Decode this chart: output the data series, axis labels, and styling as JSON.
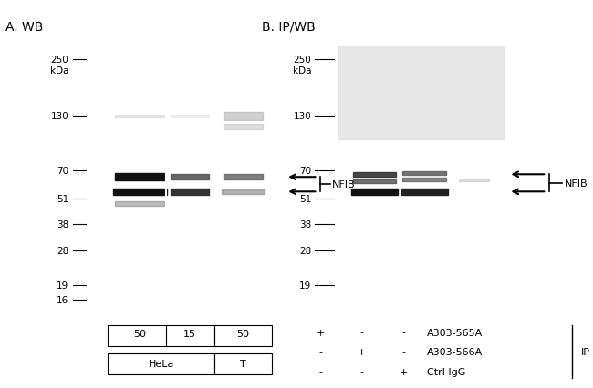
{
  "panel_A_title": "A. WB",
  "panel_B_title": "B. IP/WB",
  "kda_labels": [
    "250",
    "130",
    "70",
    "51",
    "38",
    "28",
    "19",
    "16"
  ],
  "kda_values": [
    250,
    130,
    70,
    51,
    38,
    28,
    19,
    16
  ],
  "kda_labels_B": [
    "250",
    "130",
    "70",
    "51",
    "38",
    "28",
    "19"
  ],
  "kda_values_B": [
    250,
    130,
    70,
    51,
    38,
    28,
    19
  ],
  "panel_A_sample_labels_row1": [
    "50",
    "15",
    "50"
  ],
  "panel_A_sample_labels_row2": [
    "HeLa",
    "T"
  ],
  "panel_B_plus_minus": [
    [
      "+",
      "-",
      "-"
    ],
    [
      "-",
      "+",
      "-"
    ],
    [
      "-",
      "-",
      "+"
    ]
  ],
  "panel_B_antibody_labels": [
    "A303-565A",
    "A303-566A",
    "Ctrl IgG"
  ],
  "panel_B_IP_label": "IP",
  "NFIB_label": "NFIB",
  "bg_color_A": "#e0e0e0",
  "bg_color_B": "#b8b8b8",
  "figure_bg": "#ffffff",
  "kda_lo": 13,
  "kda_hi": 290
}
